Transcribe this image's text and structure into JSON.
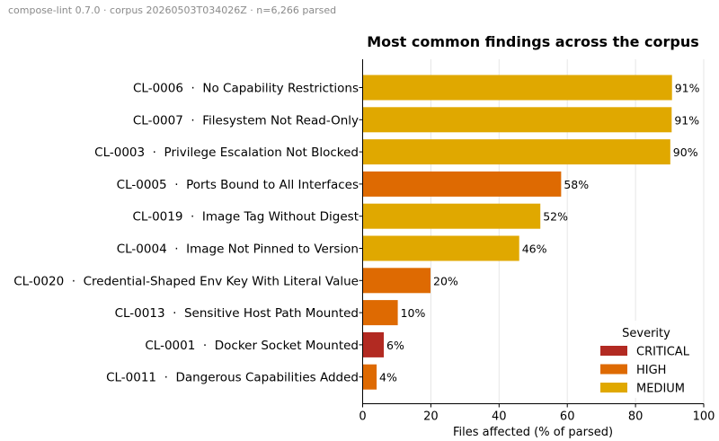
{
  "meta_line": "compose-lint 0.7.0  ·  corpus 20260503T034026Z  ·  n=6,266 parsed",
  "chart_data": {
    "type": "bar",
    "orientation": "horizontal",
    "title": "Most common findings across the corpus",
    "xlabel": "Files affected (% of parsed)",
    "ylabel": "",
    "xlim": [
      0,
      100
    ],
    "xticks": [
      0,
      20,
      40,
      60,
      80,
      100
    ],
    "grid": "vertical",
    "categories": [
      "CL-0006  ·  No Capability Restrictions",
      "CL-0007  ·  Filesystem Not Read-Only",
      "CL-0003  ·  Privilege Escalation Not Blocked",
      "CL-0005  ·  Ports Bound to All Interfaces",
      "CL-0019  ·  Image Tag Without Digest",
      "CL-0004  ·  Image Not Pinned to Version",
      "CL-0020  ·  Credential-Shaped Env Key With Literal Value",
      "CL-0013  ·  Sensitive Host Path Mounted",
      "CL-0001  ·  Docker Socket Mounted",
      "CL-0011  ·  Dangerous Capabilities Added"
    ],
    "values": [
      90.7,
      90.6,
      90.2,
      58.2,
      52.1,
      45.9,
      19.9,
      10.3,
      6.2,
      4.1
    ],
    "value_labels": [
      "91%",
      "91%",
      "90%",
      "58%",
      "52%",
      "46%",
      "20%",
      "10%",
      "6%",
      "4%"
    ],
    "severity": [
      "MEDIUM",
      "MEDIUM",
      "MEDIUM",
      "HIGH",
      "MEDIUM",
      "MEDIUM",
      "HIGH",
      "HIGH",
      "CRITICAL",
      "HIGH"
    ],
    "legend": {
      "title": "Severity",
      "placement": "lower-right",
      "entries": [
        {
          "name": "CRITICAL",
          "color": "#b22a22"
        },
        {
          "name": "HIGH",
          "color": "#de6a02"
        },
        {
          "name": "MEDIUM",
          "color": "#e0a800"
        }
      ]
    }
  }
}
